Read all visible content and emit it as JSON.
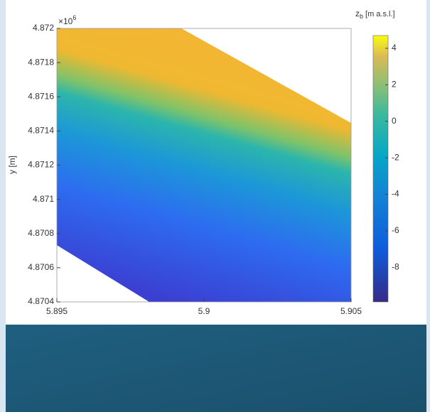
{
  "chart_data": {
    "type": "surface",
    "y_label": "y [m]",
    "y_exponent": {
      "base": "×10",
      "power": "6"
    },
    "colorbar_label": {
      "symbol": "z",
      "subscript": "b",
      "unit": "[m a.s.l.]"
    },
    "domain": {
      "x": [
        5.895,
        5.89923,
        5.905,
        5.905,
        5.89814,
        5.895
      ],
      "y": [
        4.872,
        4.872,
        4.871447,
        4.8704,
        4.8704,
        4.870732
      ]
    },
    "xlim": [
      5.895,
      5.905
    ],
    "xticks": [
      5.895,
      5.9,
      5.905
    ],
    "ylim": [
      4.8704,
      4.872
    ],
    "yticks": [
      4.8704,
      4.8706,
      4.8708,
      4.871,
      4.8712,
      4.8714,
      4.8716,
      4.8718,
      4.872
    ],
    "clim": [
      -9.9,
      4.7
    ],
    "cticks": [
      -8,
      -6,
      -4,
      -2,
      0,
      2,
      4
    ]
  }
}
